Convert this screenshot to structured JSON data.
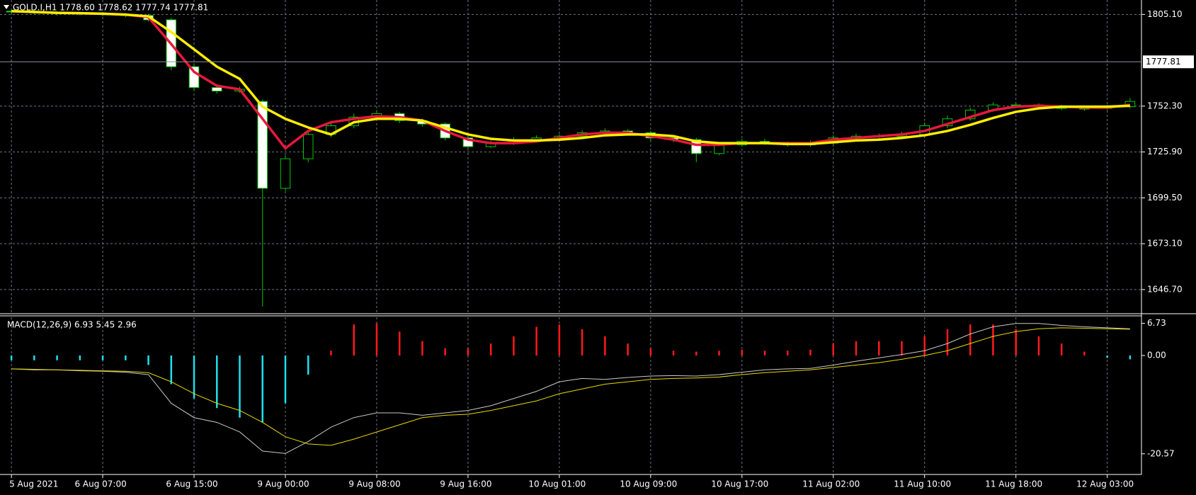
{
  "chart_data": [
    {
      "type": "candlestick",
      "title": "GOLD.I,H1  1778.60 1778.62 1777.74 1777.81",
      "open": [
        1807,
        1806.5,
        1806,
        1805.8,
        1805.5,
        1805,
        1804.5,
        1802,
        1775,
        1763,
        1761,
        1755,
        1705,
        1722,
        1736,
        1741,
        1746,
        1748,
        1744,
        1742,
        1734,
        1729,
        1731,
        1733,
        1734,
        1735,
        1737,
        1738,
        1737,
        1734,
        1733,
        1725,
        1730,
        1732,
        1731,
        1730,
        1731,
        1734,
        1735,
        1735,
        1736,
        1741,
        1745,
        1750,
        1753,
        1753,
        1752,
        1751,
        1751,
        1752
      ],
      "high": [
        1808,
        1807.5,
        1807,
        1806.5,
        1806.5,
        1806,
        1805.5,
        1803,
        1777,
        1765,
        1763.5,
        1756,
        1724,
        1738,
        1743,
        1748,
        1750,
        1749,
        1745,
        1743,
        1735,
        1732.5,
        1734.5,
        1735.5,
        1736,
        1738.5,
        1739.5,
        1739,
        1738,
        1735,
        1734,
        1731.5,
        1733.5,
        1733.5,
        1732,
        1732.5,
        1735.5,
        1736.5,
        1736.5,
        1737.5,
        1743,
        1747,
        1751.5,
        1754.5,
        1754.5,
        1754,
        1753,
        1752.5,
        1753,
        1757
      ],
      "low": [
        1805.5,
        1805,
        1804.5,
        1804.5,
        1804,
        1803.5,
        1801,
        1773,
        1761,
        1759.5,
        1760,
        1637,
        1703.5,
        1720,
        1734.5,
        1739.5,
        1744.5,
        1742.5,
        1740.5,
        1732.5,
        1727.5,
        1728,
        1730,
        1731.5,
        1732.5,
        1733.5,
        1736,
        1735.5,
        1732.5,
        1731.5,
        1720,
        1724,
        1729,
        1730,
        1729,
        1729,
        1730,
        1733,
        1733.5,
        1734,
        1735,
        1739.5,
        1744,
        1749,
        1751.5,
        1751,
        1750,
        1749.5,
        1750,
        1751
      ],
      "close": [
        1806.5,
        1806,
        1805.8,
        1805.5,
        1805,
        1804.5,
        1802,
        1775,
        1763,
        1761,
        1762,
        1705,
        1722,
        1736,
        1741,
        1746,
        1748,
        1744,
        1742,
        1734,
        1729,
        1731,
        1733,
        1734,
        1735,
        1737,
        1738,
        1737,
        1734,
        1733,
        1725,
        1730,
        1732,
        1731,
        1730,
        1731,
        1734,
        1735,
        1735,
        1736,
        1741,
        1745,
        1750,
        1753,
        1753,
        1752,
        1751,
        1751,
        1752,
        1755
      ],
      "up_color": "#00c800",
      "down_color": "#ffffff",
      "lines": [
        {
          "color": "#e8173e",
          "values": [
            1807,
            1806.5,
            1806,
            1805.8,
            1805.5,
            1805,
            1803.5,
            1788,
            1772,
            1764,
            1762,
            1745,
            1728,
            1738,
            1743,
            1745,
            1746.5,
            1746,
            1744,
            1738,
            1733,
            1731,
            1731,
            1732,
            1734,
            1736,
            1737,
            1737,
            1735,
            1733,
            1730,
            1730,
            1731,
            1731,
            1731,
            1731,
            1733,
            1734,
            1735,
            1736,
            1738,
            1742,
            1746,
            1750,
            1752,
            1752.5,
            1752,
            1751.5,
            1751.5,
            1753
          ]
        },
        {
          "color": "#ffee00",
          "values": [
            1807,
            1806.5,
            1806,
            1805.8,
            1805.5,
            1805,
            1804,
            1795,
            1785,
            1775,
            1768,
            1752,
            1745,
            1740,
            1736,
            1743,
            1745,
            1745,
            1744,
            1740,
            1736,
            1733.5,
            1732.5,
            1732.5,
            1733,
            1734,
            1735.5,
            1736,
            1736,
            1735,
            1732,
            1731,
            1731,
            1731,
            1730.5,
            1730.5,
            1731.5,
            1732.5,
            1733,
            1734,
            1735.5,
            1738,
            1741.5,
            1745.5,
            1749,
            1751,
            1752,
            1752,
            1752,
            1752.5
          ]
        }
      ],
      "last_price": 1777.81,
      "ylim": [
        1633.6,
        1813.4
      ],
      "yticks": [
        {
          "value": 1646.7,
          "label": "1646.70"
        },
        {
          "value": 1673.1,
          "label": "1673.10"
        },
        {
          "value": 1699.5,
          "label": "1699.50"
        },
        {
          "value": 1725.9,
          "label": "1725.90"
        },
        {
          "value": 1752.3,
          "label": "1752.30"
        },
        {
          "value": 1805.1,
          "label": "1805.10"
        }
      ],
      "xlim": [
        -0.5,
        49.5
      ],
      "xticks": [
        {
          "value": 0,
          "label": "5 Aug 2021"
        },
        {
          "value": 4,
          "label": "6 Aug 07:00"
        },
        {
          "value": 8,
          "label": "6 Aug 15:00"
        },
        {
          "value": 12,
          "label": "9 Aug 00:00"
        },
        {
          "value": 16,
          "label": "9 Aug 08:00"
        },
        {
          "value": 20,
          "label": "9 Aug 16:00"
        },
        {
          "value": 24,
          "label": "10 Aug 01:00"
        },
        {
          "value": 28,
          "label": "10 Aug 09:00"
        },
        {
          "value": 32,
          "label": "10 Aug 17:00"
        },
        {
          "value": 36,
          "label": "11 Aug 02:00"
        },
        {
          "value": 40,
          "label": "11 Aug 10:00"
        },
        {
          "value": 44,
          "label": "11 Aug 18:00"
        },
        {
          "value": 48,
          "label": "12 Aug 03:00"
        }
      ],
      "grid": true
    },
    {
      "type": "macd",
      "title": "MACD(12,26,9) 6.93 5.45 2.96",
      "histogram": [
        -1,
        -1,
        -1,
        -1,
        -1,
        -1,
        -2,
        -6,
        -9,
        -11,
        -13,
        -14,
        -10,
        -4,
        1,
        6.5,
        6.7,
        5,
        3,
        1.5,
        1.5,
        2.5,
        4,
        6,
        6.5,
        5.5,
        4,
        2.5,
        1.5,
        1,
        0.8,
        1,
        1.2,
        1,
        1,
        1.2,
        2.5,
        3,
        3,
        3,
        4,
        5.5,
        6.5,
        6.5,
        5.5,
        4,
        2.5,
        0.8,
        -0.5,
        -0.8
      ],
      "positive_color": "#ff1a1a",
      "negative_color": "#1ee0ee",
      "lines": [
        {
          "color": "#c8c8c8",
          "values": [
            -2.8,
            -3,
            -3,
            -3.2,
            -3.3,
            -3.5,
            -4,
            -10,
            -13,
            -14,
            -16,
            -20,
            -20.5,
            -18,
            -15,
            -13,
            -12,
            -12,
            -12.5,
            -12,
            -11.5,
            -10.5,
            -9,
            -7.5,
            -5.5,
            -4.8,
            -5,
            -4.6,
            -4.3,
            -4.2,
            -4.3,
            -4,
            -3.5,
            -3,
            -2.8,
            -2.7,
            -2,
            -1.2,
            -0.5,
            0.2,
            1,
            2.5,
            4.5,
            6,
            6.7,
            6.7,
            6.3,
            6,
            5.8,
            5.6
          ]
        },
        {
          "color": "#e6d800",
          "values": [
            -2.8,
            -2.9,
            -3,
            -3.1,
            -3.2,
            -3.3,
            -3.6,
            -5.5,
            -8,
            -10,
            -11.5,
            -14,
            -17,
            -18.5,
            -18.8,
            -17.5,
            -16,
            -14.5,
            -13,
            -12.5,
            -12.3,
            -11.5,
            -10.5,
            -9.5,
            -8,
            -7,
            -6,
            -5.5,
            -5,
            -4.8,
            -4.7,
            -4.5,
            -4,
            -3.6,
            -3.3,
            -3,
            -2.5,
            -2,
            -1.5,
            -0.8,
            0,
            1,
            2.5,
            4,
            5,
            5.6,
            5.8,
            5.7,
            5.6,
            5.5
          ]
        }
      ],
      "ylim": [
        -24.6,
        8.0
      ],
      "yticks": [
        {
          "value": 6.73,
          "label": "6.73"
        },
        {
          "value": 0,
          "label": "0.00"
        },
        {
          "value": -20.57,
          "label": "-20.57"
        }
      ]
    }
  ]
}
